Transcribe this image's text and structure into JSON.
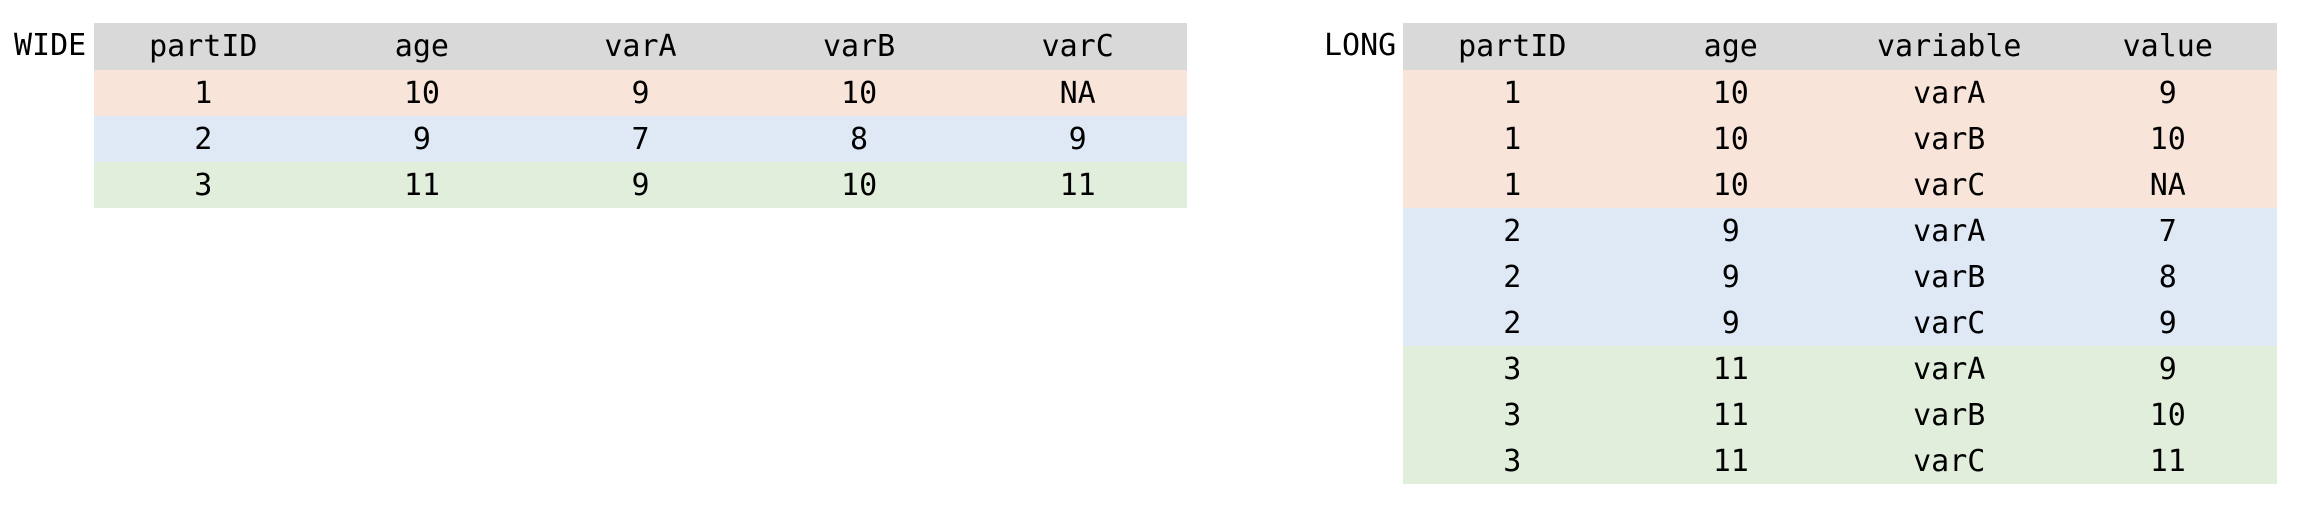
{
  "wide": {
    "label": "WIDE",
    "columns": [
      "partID",
      "age",
      "varA",
      "varB",
      "varC"
    ],
    "rows": [
      {
        "group": 1,
        "cells": [
          "1",
          "10",
          "9",
          "10",
          "NA"
        ]
      },
      {
        "group": 2,
        "cells": [
          "2",
          "9",
          "7",
          "8",
          "9"
        ]
      },
      {
        "group": 3,
        "cells": [
          "3",
          "11",
          "9",
          "10",
          "11"
        ]
      }
    ]
  },
  "long": {
    "label": "LONG",
    "columns": [
      "partID",
      "age",
      "variable",
      "value"
    ],
    "rows": [
      {
        "group": 1,
        "cells": [
          "1",
          "10",
          "varA",
          "9"
        ]
      },
      {
        "group": 1,
        "cells": [
          "1",
          "10",
          "varB",
          "10"
        ]
      },
      {
        "group": 1,
        "cells": [
          "1",
          "10",
          "varC",
          "NA"
        ]
      },
      {
        "group": 2,
        "cells": [
          "2",
          "9",
          "varA",
          "7"
        ]
      },
      {
        "group": 2,
        "cells": [
          "2",
          "9",
          "varB",
          "8"
        ]
      },
      {
        "group": 2,
        "cells": [
          "2",
          "9",
          "varC",
          "9"
        ]
      },
      {
        "group": 3,
        "cells": [
          "3",
          "11",
          "varA",
          "9"
        ]
      },
      {
        "group": 3,
        "cells": [
          "3",
          "11",
          "varB",
          "10"
        ]
      },
      {
        "group": 3,
        "cells": [
          "3",
          "11",
          "varC",
          "11"
        ]
      }
    ]
  },
  "colors": {
    "header_bg": "#d9d9d9",
    "participant_1": "#f9e4d9",
    "participant_2": "#dfe9f6",
    "participant_3": "#e2eedc"
  }
}
